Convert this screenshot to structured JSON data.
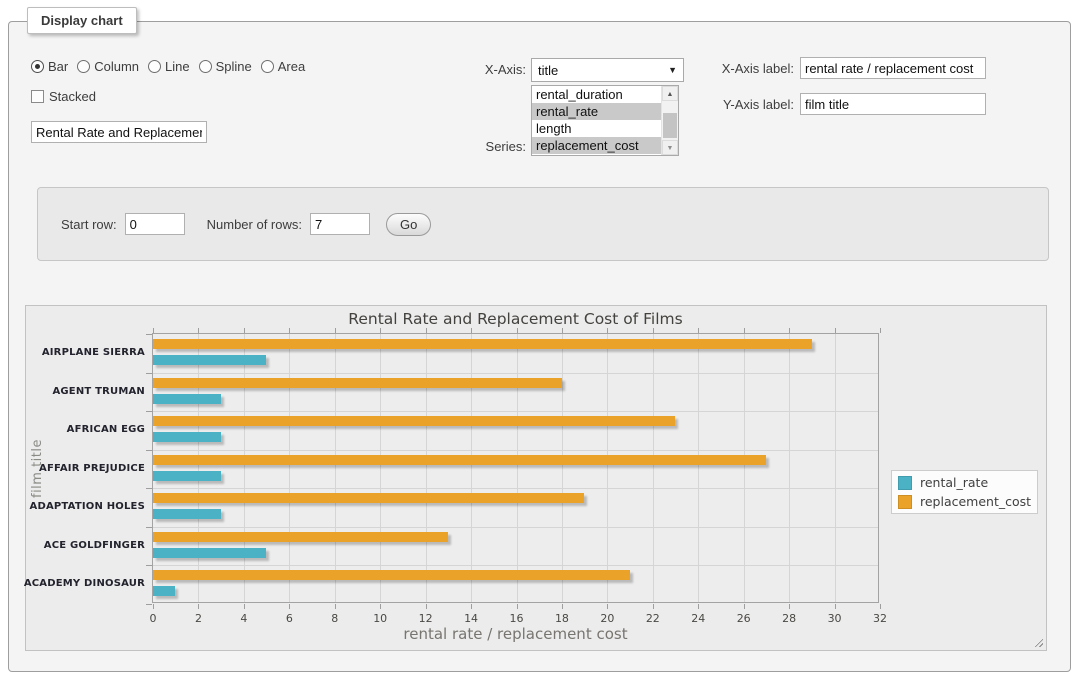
{
  "panel": {
    "legend_title": "Display chart",
    "chart_type_options": [
      {
        "label": "Bar",
        "selected": true
      },
      {
        "label": "Column",
        "selected": false
      },
      {
        "label": "Line",
        "selected": false
      },
      {
        "label": "Spline",
        "selected": false
      },
      {
        "label": "Area",
        "selected": false
      }
    ],
    "stacked": {
      "label": "Stacked",
      "checked": false
    },
    "title_input": {
      "value": "Rental Rate and Replacement Cost of Films"
    },
    "x_axis": {
      "label": "X-Axis:",
      "selected": "title"
    },
    "series": {
      "label": "Series:",
      "options": [
        {
          "label": "rental_duration",
          "selected": false
        },
        {
          "label": "rental_rate",
          "selected": true
        },
        {
          "label": "length",
          "selected": false
        },
        {
          "label": "replacement_cost",
          "selected": true
        }
      ]
    },
    "x_axis_label": {
      "label": "X-Axis label:",
      "value": "rental rate / replacement cost"
    },
    "y_axis_label": {
      "label": "Y-Axis label:",
      "value": "film title"
    }
  },
  "rows_panel": {
    "start_row_label": "Start row:",
    "start_row_value": "0",
    "num_rows_label": "Number of rows:",
    "num_rows_value": "7",
    "go_label": "Go"
  },
  "icons": {
    "select_arrow": "▼",
    "scroll_up": "▲",
    "scroll_down": "▼"
  },
  "chart_data": {
    "type": "bar",
    "orientation": "horizontal",
    "title": "Rental Rate and Replacement Cost of Films",
    "xlabel": "rental rate / replacement cost",
    "ylabel": "film title",
    "categories": [
      "AIRPLANE SIERRA",
      "AGENT TRUMAN",
      "AFRICAN EGG",
      "AFFAIR PREJUDICE",
      "ADAPTATION HOLES",
      "ACE GOLDFINGER",
      "ACADEMY DINOSAUR"
    ],
    "series": [
      {
        "name": "rental_rate",
        "color": "#4bb2c5",
        "values": [
          4.99,
          2.99,
          2.99,
          2.99,
          2.99,
          4.99,
          0.99
        ]
      },
      {
        "name": "replacement_cost",
        "color": "#eaa228",
        "values": [
          28.99,
          17.99,
          22.99,
          26.99,
          18.99,
          12.99,
          20.99
        ]
      }
    ],
    "xlim": [
      0,
      32
    ],
    "xtick_step": 2,
    "grid": true,
    "legend_position": "right"
  }
}
